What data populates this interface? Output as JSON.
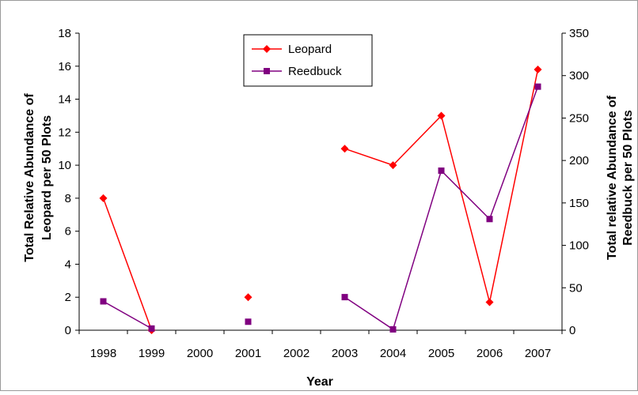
{
  "chart_data": {
    "type": "line",
    "title": "",
    "xlabel": "Year",
    "ylabel_left": "Total Relative Abundance of Leopard per 50 Plots",
    "ylabel_left_lines": [
      "Total Relative Abundance of",
      "Leopard per 50 Plots"
    ],
    "ylabel_right": "Total relative Abundance of Reedbuck per 50 Plots",
    "ylabel_right_lines": [
      "Total relative Abundance of",
      "Reedbuck per 50 Plots"
    ],
    "categories": [
      "1998",
      "1999",
      "2000",
      "2001",
      "2002",
      "2003",
      "2004",
      "2005",
      "2006",
      "2007"
    ],
    "y_left_range": [
      0,
      18
    ],
    "y_left_ticks": [
      0,
      2,
      4,
      6,
      8,
      10,
      12,
      14,
      16,
      18
    ],
    "y_right_range": [
      0,
      350
    ],
    "y_right_ticks": [
      0,
      50,
      100,
      150,
      200,
      250,
      300,
      350
    ],
    "grid": false,
    "legend_position": "top-center",
    "series": [
      {
        "name": "Leopard",
        "axis": "left",
        "color": "#ff0000",
        "marker": "diamond",
        "values": [
          8,
          0,
          null,
          2,
          null,
          11,
          10,
          13,
          1.7,
          15.8
        ]
      },
      {
        "name": "Reedbuck",
        "axis": "right",
        "color": "#800080",
        "marker": "square",
        "values": [
          34,
          2,
          null,
          10,
          null,
          39,
          1,
          188,
          131,
          287
        ]
      }
    ]
  }
}
